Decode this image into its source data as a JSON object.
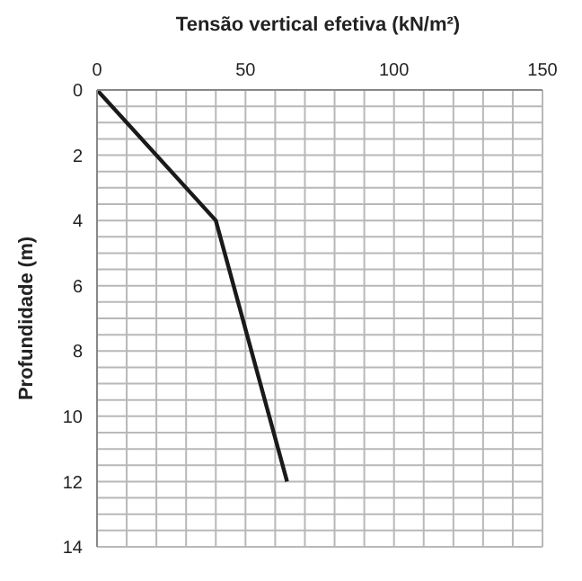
{
  "chart_data": {
    "type": "line",
    "xlabel": "Tensão vertical efetiva (kN/m²)",
    "ylabel": "Profundidade (m)",
    "x": [
      0,
      40,
      64
    ],
    "series": [
      {
        "color": "#1a1a1a",
        "values": [
          0,
          4,
          12
        ]
      }
    ],
    "xlim": [
      0,
      150
    ],
    "xticks": [
      0,
      {
        "value": 10,
        "label": null
      },
      {
        "value": 20,
        "label": null
      },
      {
        "value": 30,
        "label": null
      },
      {
        "value": 40,
        "label": null
      },
      50,
      {
        "value": 60,
        "label": null
      },
      {
        "value": 70,
        "label": null
      },
      {
        "value": 80,
        "label": null
      },
      {
        "value": 90,
        "label": null
      },
      100,
      {
        "value": 110,
        "label": null
      },
      {
        "value": 120,
        "label": null
      },
      {
        "value": 130,
        "label": null
      },
      {
        "value": 140,
        "label": null
      },
      150
    ],
    "ylim": [
      14,
      0
    ],
    "yticks": [
      0,
      {
        "value": 0.5,
        "label": null
      },
      {
        "value": 1,
        "label": null
      },
      {
        "value": 1.5,
        "label": null
      },
      2,
      {
        "value": 2.5,
        "label": null
      },
      {
        "value": 3,
        "label": null
      },
      {
        "value": 3.5,
        "label": null
      },
      4,
      {
        "value": 4.5,
        "label": null
      },
      {
        "value": 5,
        "label": null
      },
      {
        "value": 5.5,
        "label": null
      },
      6,
      {
        "value": 6.5,
        "label": null
      },
      {
        "value": 7,
        "label": null
      },
      {
        "value": 7.5,
        "label": null
      },
      8,
      {
        "value": 8.5,
        "label": null
      },
      {
        "value": 9,
        "label": null
      },
      {
        "value": 9.5,
        "label": null
      },
      10,
      {
        "value": 10.5,
        "label": null
      },
      {
        "value": 11,
        "label": null
      },
      {
        "value": 11.5,
        "label": null
      },
      12,
      {
        "value": 12.5,
        "label": null
      },
      {
        "value": 13,
        "label": null
      },
      {
        "value": 13.5,
        "label": null
      },
      14
    ],
    "grid": true,
    "marker": "none",
    "line_style": "solid",
    "legend": false
  }
}
